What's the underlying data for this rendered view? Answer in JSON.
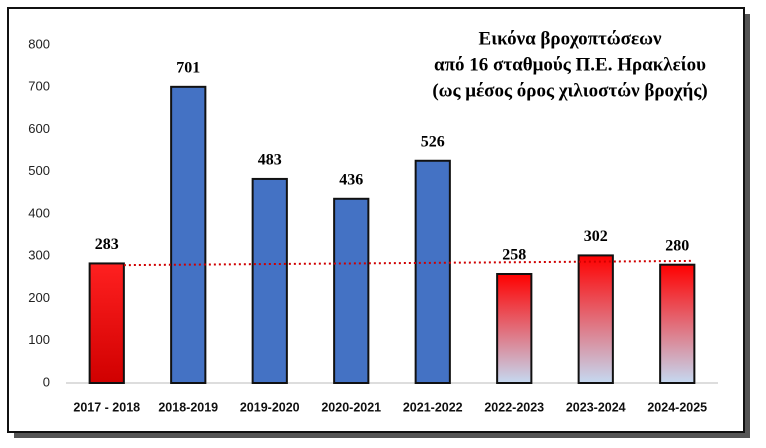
{
  "chart_data": {
    "type": "bar",
    "title_lines": [
      "Εικόνα βροχοπτώσεων",
      "από 16 σταθμούς Π.Ε. Ηρακλείου",
      "(ως μέσος όρος χιλιοστών βροχής)"
    ],
    "categories": [
      "2017 - 2018",
      "2018-2019",
      "2019-2020",
      "2020-2021",
      "2021-2022",
      "2022-2023",
      "2023-2024",
      "2024-2025"
    ],
    "values": [
      283,
      701,
      483,
      436,
      526,
      258,
      302,
      280
    ],
    "colors": [
      [
        "#ff2020",
        "#d00000"
      ],
      [
        "#4472c4",
        "#4472c4"
      ],
      [
        "#4472c4",
        "#4472c4"
      ],
      [
        "#4472c4",
        "#4472c4"
      ],
      [
        "#4472c4",
        "#4472c4"
      ],
      [
        "#ff0000",
        "#c5d9f1"
      ],
      [
        "#ff0000",
        "#c5d9f1"
      ],
      [
        "#ff0000",
        "#c5d9f1"
      ]
    ],
    "trend_line": [
      279,
      289
    ],
    "trend_color": "#d00000",
    "ylim": [
      0,
      800
    ],
    "yticks": [
      0,
      100,
      200,
      300,
      400,
      500,
      600,
      700,
      800
    ],
    "grid": false
  }
}
